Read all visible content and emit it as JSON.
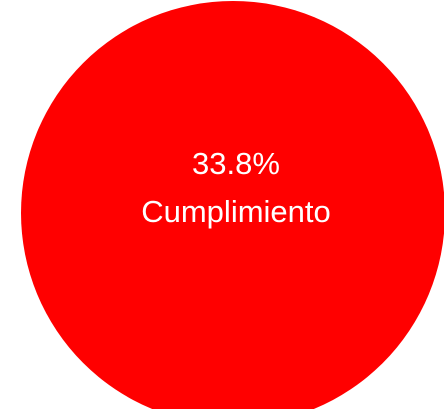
{
  "chart_data": {
    "type": "pie",
    "labels": [
      "Cumplimiento"
    ],
    "values": [
      33.8
    ],
    "value_text": "33.8%",
    "label_text": "Cumplimiento",
    "colors": [
      "#FF0000"
    ],
    "label_color": "#FFFFFF",
    "legend": "none",
    "grid": false
  }
}
